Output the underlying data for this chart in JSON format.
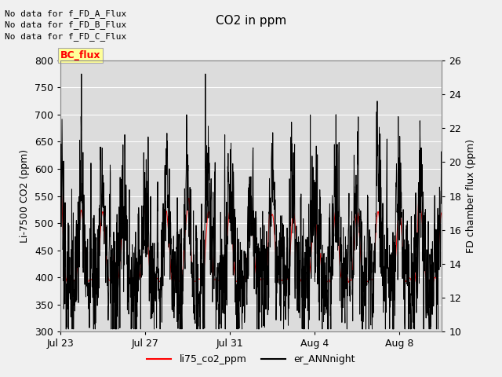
{
  "title": "CO2 in ppm",
  "ylabel_left": "Li-7500 CO2 (ppm)",
  "ylabel_right": "FD chamber flux (ppm)",
  "ylim_left": [
    300,
    800
  ],
  "ylim_right": [
    10,
    26
  ],
  "xtick_labels": [
    "Jul 23",
    "Jul 27",
    "Jul 31",
    "Aug 4",
    "Aug 8"
  ],
  "xtick_positions": [
    0,
    4,
    8,
    12,
    16
  ],
  "yticks_left": [
    300,
    350,
    400,
    450,
    500,
    550,
    600,
    650,
    700,
    750,
    800
  ],
  "yticks_right": [
    10,
    12,
    14,
    16,
    18,
    20,
    22,
    24,
    26
  ],
  "legend_labels": [
    "li75_co2_ppm",
    "er_ANNnight"
  ],
  "no_data_texts": [
    "No data for f_FD_A_Flux",
    "No data for f_FD_B_Flux",
    "No data for f_FD_C_Flux"
  ],
  "bc_flux_label": "BC_flux",
  "bc_flux_color": "#ffff99",
  "bc_flux_text_color": "red",
  "fig_bg_color": "#f0f0f0",
  "plot_bg_color": "#dcdcdc",
  "grid_color": "#ffffff",
  "n_days": 18,
  "title_fontsize": 11,
  "axis_label_fontsize": 9,
  "tick_fontsize": 9,
  "legend_fontsize": 9,
  "nodata_fontsize": 8
}
